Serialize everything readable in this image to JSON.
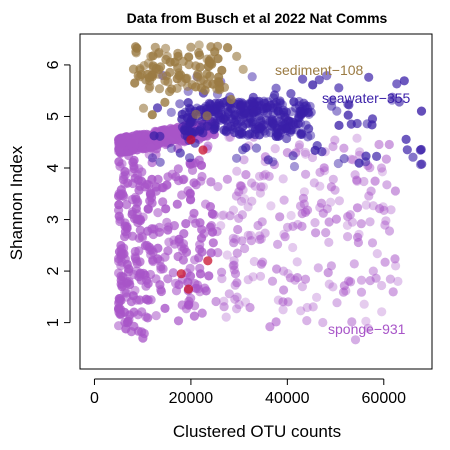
{
  "chart_data": {
    "type": "scatter",
    "title": "Data from Busch et al 2022 Nat Comms",
    "xlabel": "Clustered OTU counts",
    "ylabel": "Shannon Index",
    "xlim": [
      -3000,
      70000
    ],
    "ylim": [
      0.1,
      6.6
    ],
    "x_ticks": [
      0,
      20000,
      40000,
      60000
    ],
    "x_tick_labels": [
      "0",
      "20000",
      "40000",
      "60000"
    ],
    "y_ticks": [
      1,
      2,
      3,
      4,
      5,
      6
    ],
    "y_tick_labels": [
      "1",
      "2",
      "3",
      "4",
      "5",
      "6"
    ],
    "grid": false,
    "legend_placement": "inline labels (top-right, right, bottom-right)",
    "series": [
      {
        "name": "sponge-931",
        "color": "#A855C8",
        "count": 931,
        "x_range": [
          5000,
          63000
        ],
        "y_range": [
          0.3,
          5.0
        ],
        "dense_band": {
          "x": [
            5000,
            25000
          ],
          "y": [
            4.4,
            5.0
          ]
        }
      },
      {
        "name": "seawater-355",
        "color": "#3A1FA8",
        "count": 355,
        "x_range": [
          12000,
          69000
        ],
        "y_range": [
          4.0,
          5.8
        ],
        "core": {
          "x": [
            18000,
            45000
          ],
          "y": [
            4.6,
            5.3
          ]
        }
      },
      {
        "name": "sediment-108",
        "color": "#9B7B43",
        "count": 108,
        "x_range": [
          7000,
          32000
        ],
        "y_range": [
          5.0,
          6.5
        ],
        "core": {
          "x": [
            8000,
            26000
          ],
          "y": [
            5.5,
            6.4
          ]
        }
      }
    ],
    "highlighted_points": {
      "color": "#C8102E",
      "points": [
        [
          18000,
          1.95
        ],
        [
          19500,
          1.65
        ],
        [
          20000,
          4.55
        ],
        [
          22500,
          4.35
        ],
        [
          23500,
          2.2
        ]
      ]
    }
  },
  "labels": {
    "sediment": "sediment−108",
    "seawater": "seawater−355",
    "sponge": "sponge−931"
  }
}
